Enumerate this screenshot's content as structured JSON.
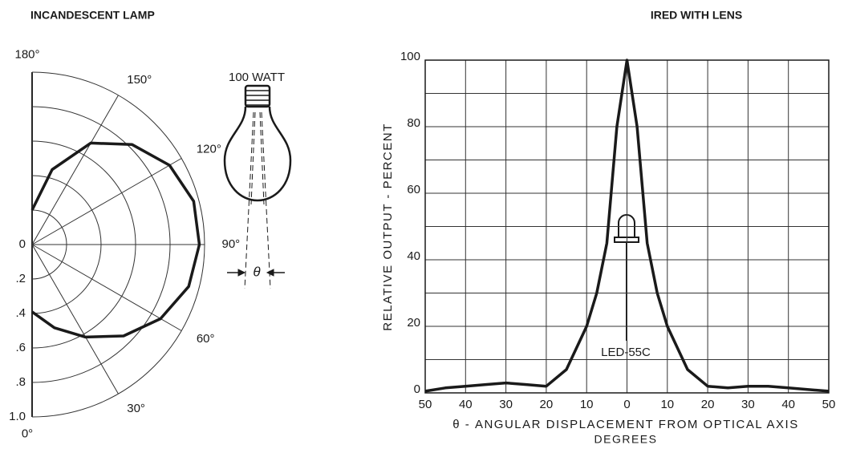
{
  "chart_data": [
    {
      "type": "polar",
      "title": "INCANDESCENT LAMP",
      "theta": [
        0,
        15,
        30,
        45,
        60,
        75,
        90,
        105,
        120,
        135,
        150,
        165,
        180
      ],
      "values": [
        0.39,
        0.5,
        0.62,
        0.75,
        0.86,
        0.94,
        0.97,
        0.97,
        0.92,
        0.82,
        0.68,
        0.45,
        0.2
      ],
      "color": "#1a1a1a",
      "rlim": [
        0,
        1
      ],
      "rticks": [
        0,
        {
          "value": 0.2,
          "label": ".2"
        },
        {
          "value": 0.4,
          "label": ".4"
        },
        {
          "value": 0.6,
          "label": ".6"
        },
        {
          "value": 0.8,
          "label": ".8"
        },
        {
          "value": 1,
          "label": "1.0"
        }
      ],
      "thetaticks": [
        {
          "value": 0,
          "label": "0°"
        },
        {
          "value": 30,
          "label": "30°"
        },
        {
          "value": 60,
          "label": "60°"
        },
        {
          "value": 90,
          "label": "90°"
        },
        {
          "value": 120,
          "label": "120°"
        },
        {
          "value": 150,
          "label": "150°"
        },
        {
          "value": 180,
          "label": "180°"
        }
      ],
      "annotations": [
        "100 WATT",
        "θ"
      ]
    },
    {
      "type": "line",
      "title": "IRED WITH LENS",
      "x_label": "θ - ANGULAR DISPLACEMENT FROM OPTICAL AXIS",
      "x_label_line2": "DEGREES",
      "y_label": "RELATIVE OUTPUT - PERCENT",
      "x": [
        -50,
        -45,
        -40,
        -35,
        -30,
        -25,
        -20,
        -15,
        -10,
        -7.5,
        -5,
        -2.5,
        0,
        2.5,
        5,
        7.5,
        10,
        15,
        20,
        25,
        30,
        35,
        40,
        45,
        50
      ],
      "values": [
        0.5,
        1.5,
        2,
        2.5,
        3,
        2.5,
        2,
        7,
        20,
        30,
        45,
        80,
        100,
        80,
        45,
        30,
        20,
        7,
        2,
        1.5,
        2,
        2,
        1.5,
        1,
        0.5
      ],
      "color": "#1a1a1a",
      "xlim": [
        -50,
        50
      ],
      "xticks": [
        {
          "value": -50,
          "label": "50"
        },
        {
          "value": -40,
          "label": "40"
        },
        {
          "value": -30,
          "label": "30"
        },
        {
          "value": -20,
          "label": "20"
        },
        {
          "value": -10,
          "label": "10"
        },
        0,
        10,
        20,
        30,
        40,
        50
      ],
      "ylim": [
        0,
        100
      ],
      "yticks": [
        0,
        20,
        40,
        60,
        80,
        100
      ],
      "y_minor_grid": [
        10,
        30,
        50,
        70,
        90
      ],
      "grid": true,
      "annotations": [
        "LED-55C"
      ]
    }
  ]
}
